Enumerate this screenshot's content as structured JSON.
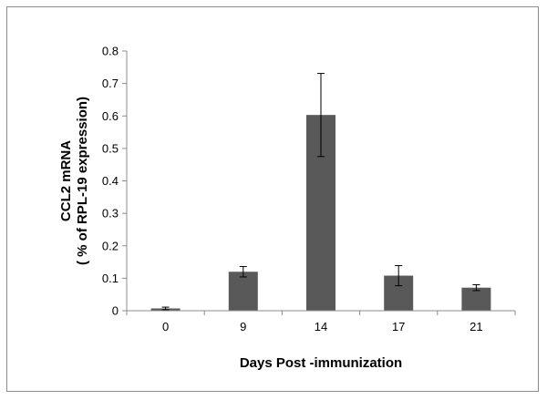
{
  "chart_data": {
    "type": "bar",
    "categories": [
      "0",
      "9",
      "14",
      "17",
      "21"
    ],
    "values": [
      0.007,
      0.12,
      0.603,
      0.108,
      0.071
    ],
    "errors": [
      0.004,
      0.016,
      0.128,
      0.031,
      0.009
    ],
    "ylim": [
      0,
      0.8
    ],
    "yticks": [
      "0",
      "0.1",
      "0.2",
      "0.3",
      "0.4",
      "0.5",
      "0.6",
      "0.7",
      "0.8"
    ],
    "xlabel": "Days Post -immunization",
    "ylabel_line1": "CCL2 mRNA",
    "ylabel_line2": "( % of RPL-19 expression)",
    "grid": false,
    "legend": "none",
    "bar_color": "#595959"
  }
}
